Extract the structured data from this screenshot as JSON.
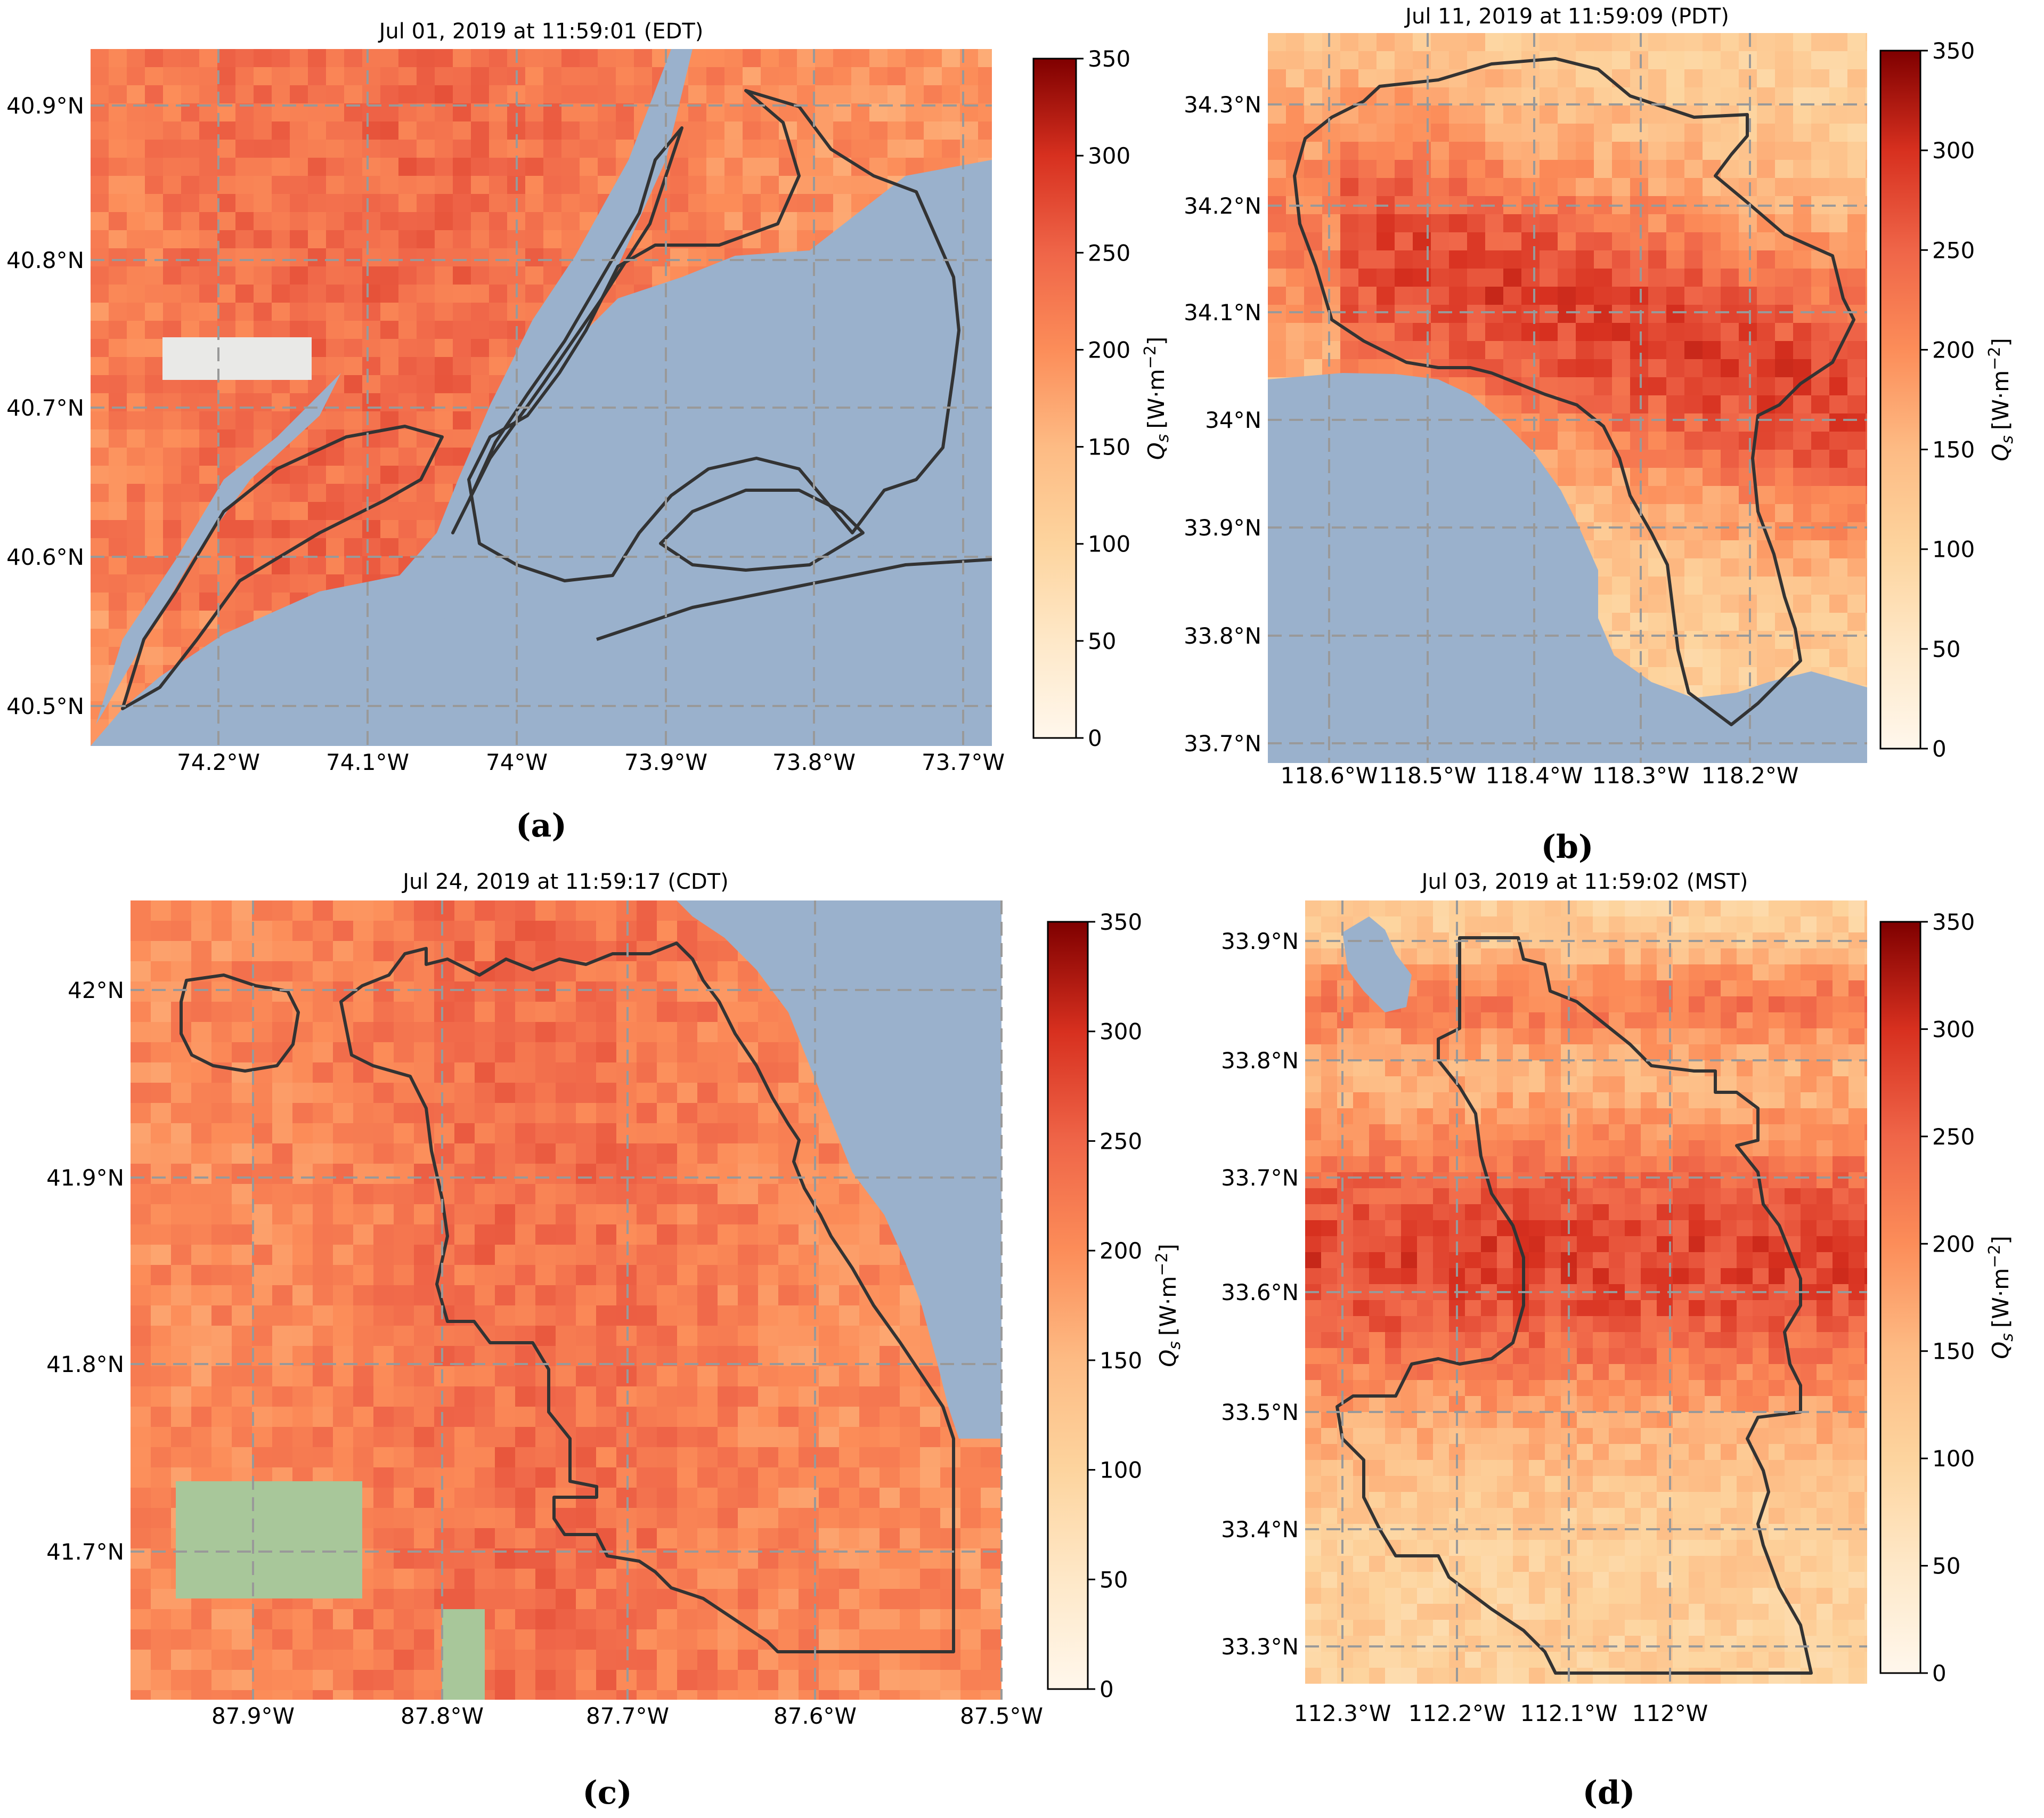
{
  "colorbar": {
    "label_quantity": "Q",
    "label_subscript": "s",
    "label_units": "[W·m",
    "label_exponent": "−2",
    "label_close": "]",
    "ticks": [
      "0",
      "50",
      "100",
      "150",
      "200",
      "250",
      "300",
      "350"
    ],
    "colormap": "OrRd",
    "colors": {
      "stop_0": "#fff7ec",
      "stop_50": "#fee8c8",
      "stop_100": "#fdd49e",
      "stop_150": "#fdbb84",
      "stop_200": "#fc8d59",
      "stop_250": "#ef6548",
      "stop_300": "#d7301f",
      "stop_350": "#7f0000"
    }
  },
  "colors": {
    "water": "#9ab1cc",
    "boundary": "#333333",
    "grid": "#999999",
    "park": "#a8c79a"
  },
  "panels": [
    {
      "id": "a",
      "caption": "(a)",
      "title": "Jul 01, 2019 at 11:59:01 (EDT)",
      "lat_ticks": [
        "40.9°N",
        "40.8°N",
        "40.7°N",
        "40.6°N",
        "40.5°N"
      ],
      "lon_ticks": [
        "74.2°W",
        "74.1°W",
        "74°W",
        "73.9°W",
        "73.8°W",
        "73.7°W"
      ]
    },
    {
      "id": "b",
      "caption": "(b)",
      "title": "Jul 11, 2019 at 11:59:09 (PDT)",
      "lat_ticks": [
        "34.3°N",
        "34.2°N",
        "34.1°N",
        "34°N",
        "33.9°N",
        "33.8°N",
        "33.7°N"
      ],
      "lon_ticks": [
        "118.6°W",
        "118.5°W",
        "118.4°W",
        "118.3°W",
        "118.2°W"
      ]
    },
    {
      "id": "c",
      "caption": "(c)",
      "title": "Jul 24, 2019 at 11:59:17 (CDT)",
      "lat_ticks": [
        "42°N",
        "41.9°N",
        "41.8°N",
        "41.7°N"
      ],
      "lon_ticks": [
        "87.9°W",
        "87.8°W",
        "87.7°W",
        "87.6°W",
        "87.5°W"
      ]
    },
    {
      "id": "d",
      "caption": "(d)",
      "title": "Jul 03, 2019 at 11:59:02 (MST)",
      "lat_ticks": [
        "33.9°N",
        "33.8°N",
        "33.7°N",
        "33.6°N",
        "33.5°N",
        "33.4°N",
        "33.3°N"
      ],
      "lon_ticks": [
        "112.3°W",
        "112.2°W",
        "112.1°W",
        "112°W"
      ]
    }
  ]
}
